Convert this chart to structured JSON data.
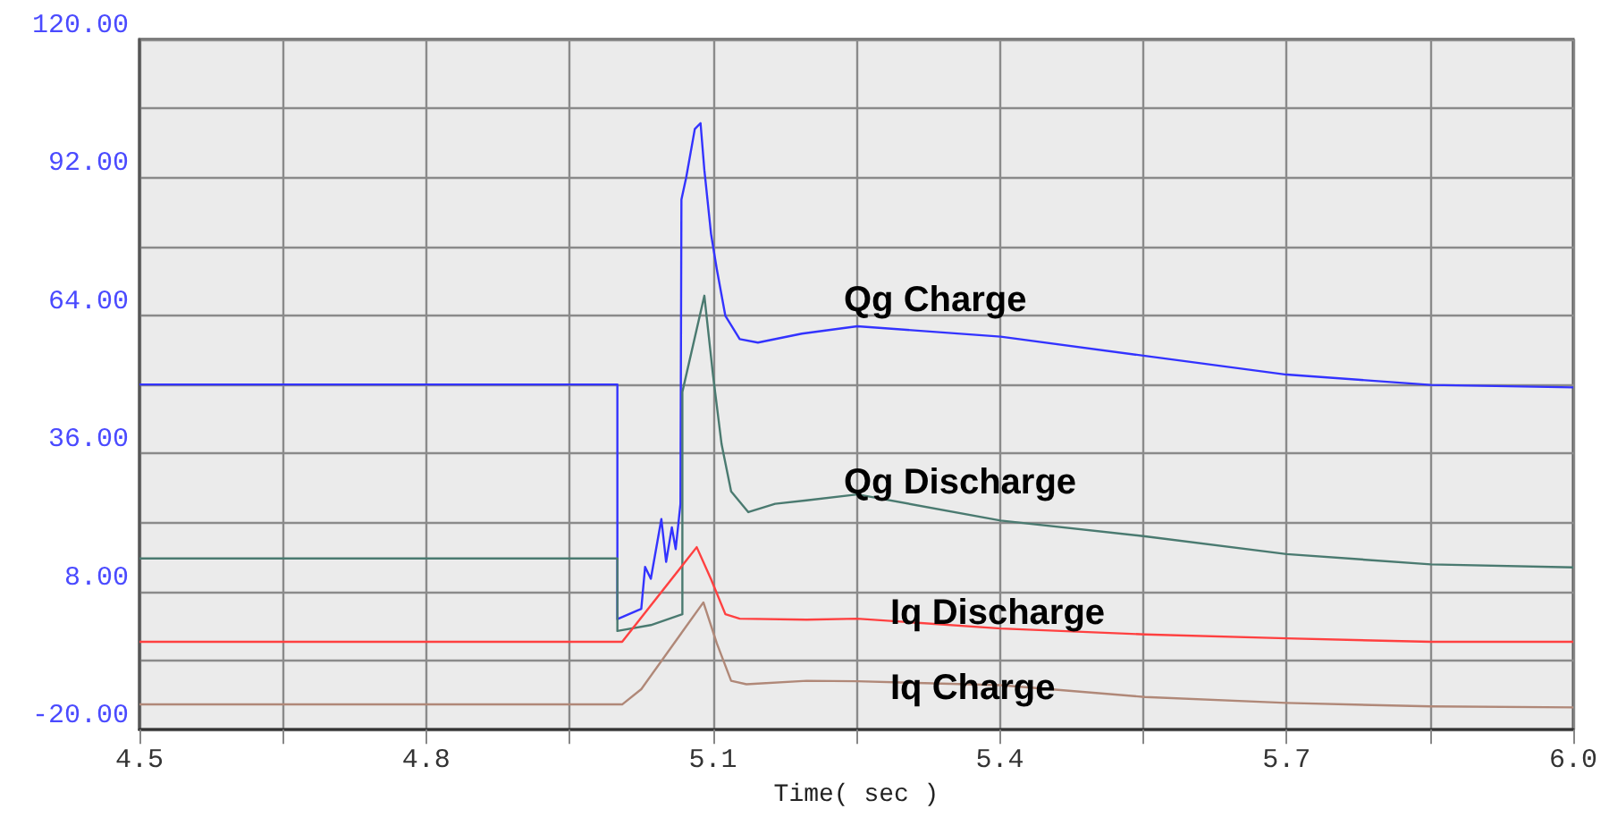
{
  "chart_data": {
    "type": "line",
    "xlabel": "Time( sec )",
    "xlim": [
      4.5,
      6.0
    ],
    "xticks": [
      4.5,
      {
        "value": 4.65,
        "label": null
      },
      4.8,
      {
        "value": 4.95,
        "label": null
      },
      5.1,
      {
        "value": 5.25,
        "label": null
      },
      5.4,
      {
        "value": 5.55,
        "label": null
      },
      5.7,
      {
        "value": 5.85,
        "label": null
      },
      {
        "value": 6,
        "label": "6.0"
      }
    ],
    "ylim": [
      -20,
      120
    ],
    "yticks": [
      {
        "value": -20,
        "label": "-20.00"
      },
      {
        "value": -6,
        "label": null
      },
      {
        "value": 8,
        "label": "8.00"
      },
      {
        "value": 22,
        "label": null
      },
      {
        "value": 36,
        "label": "36.00"
      },
      {
        "value": 50,
        "label": null
      },
      {
        "value": 64,
        "label": "64.00"
      },
      {
        "value": 78,
        "label": null
      },
      {
        "value": 92,
        "label": "92.00"
      },
      {
        "value": 106,
        "label": null
      },
      {
        "value": 120,
        "label": "120.00"
      }
    ],
    "grid": true,
    "legend": false,
    "marker": "none",
    "line_style": "solid",
    "series": [
      {
        "name": "Qg Charge",
        "color": "#3333ff",
        "x": [
          4.5,
          5.0,
          5.0,
          5.025,
          5.029,
          5.035,
          5.046,
          5.051,
          5.057,
          5.061,
          5.066,
          5.067,
          5.072,
          5.081,
          5.087,
          5.091,
          5.098,
          5.104,
          5.113,
          5.128,
          5.147,
          5.193,
          5.251,
          5.401,
          5.552,
          5.7,
          5.851,
          6.0
        ],
        "values": [
          50,
          50,
          2.4,
          4.5,
          13,
          10.6,
          22.7,
          14,
          21,
          16.6,
          25.8,
          87.5,
          92,
          101.8,
          103,
          93.5,
          80.5,
          73.4,
          63.9,
          59.2,
          58.5,
          60.3,
          61.8,
          59.7,
          55.8,
          52,
          49.9,
          49.4
        ]
      },
      {
        "name": "Qg Discharge",
        "color": "#4a7a70",
        "x": [
          4.5,
          5.0,
          5.0,
          5.035,
          5.068,
          5.068,
          5.091,
          5.1,
          5.109,
          5.119,
          5.137,
          5.165,
          5.198,
          5.251,
          5.401,
          5.552,
          5.7,
          5.851,
          6.0
        ],
        "values": [
          14.7,
          14.7,
          0,
          1.2,
          3.4,
          48.5,
          68,
          52,
          37.9,
          28.3,
          24.1,
          25.8,
          26.5,
          27.7,
          22.4,
          19.2,
          15.6,
          13.5,
          12.9
        ]
      },
      {
        "name": "Iq Discharge",
        "color": "#ff4040",
        "x": [
          4.5,
          5.005,
          5.083,
          5.098,
          5.113,
          5.128,
          5.198,
          5.251,
          5.401,
          5.552,
          5.7,
          5.851,
          6.0
        ],
        "values": [
          -2.2,
          -2.2,
          17,
          10.5,
          3.4,
          2.5,
          2.3,
          2.5,
          0.5,
          -0.7,
          -1.5,
          -2.2,
          -2.2
        ]
      },
      {
        "name": "Iq Charge",
        "color": "#b08878",
        "x": [
          4.5,
          5.005,
          5.025,
          5.09,
          5.104,
          5.119,
          5.135,
          5.198,
          5.251,
          5.401,
          5.552,
          5.7,
          5.851,
          6.0
        ],
        "values": [
          -14.9,
          -14.9,
          -11.8,
          5.8,
          -2.5,
          -10.1,
          -10.8,
          -10.1,
          -10.2,
          -11,
          -13.4,
          -14.6,
          -15.3,
          -15.5
        ]
      }
    ]
  }
}
